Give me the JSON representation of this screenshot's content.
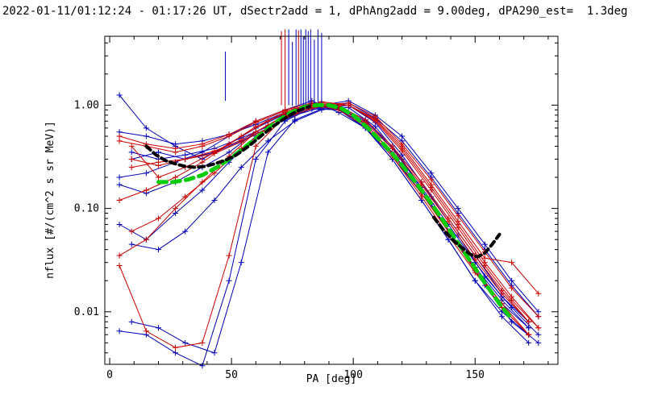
{
  "header": {
    "title": "2022-01-11/01:12:24 - 01:17:26 UT, dSectr2add = 1, dPhAng2add = 9.00deg, dPA290_est=  1.3deg"
  },
  "chart_data": {
    "type": "line",
    "title": "2022-01-11/01:12:24 - 01:17:26 UT, dSectr2add = 1, dPhAng2add = 9.00deg, dPA290_est=  1.3deg",
    "xlabel": "PA [deg]",
    "ylabel": "nflux [#/(cm^2 s sr MeV)]",
    "x_range": [
      -2,
      184
    ],
    "y_range_log": [
      0.0031,
      4.64
    ],
    "x_major_ticks": [
      0,
      50,
      100,
      150
    ],
    "x_major_labels": [
      "0",
      "50",
      "100",
      "150"
    ],
    "x_minor_step": 10,
    "y_major_ticks": [
      0.01,
      0.1,
      1.0
    ],
    "y_major_labels": [
      "0.01",
      "0.10",
      "1.00"
    ],
    "grid": false,
    "legend": "none",
    "colors": {
      "red": "#cc0000",
      "blue": "#0000bb",
      "green": "#00cc00",
      "black": "#000000",
      "axis": "#000000",
      "bg": "#ffffff"
    },
    "series": [
      {
        "name": "blue-1",
        "color": "blue",
        "x": [
          4,
          15,
          27,
          38,
          49,
          60,
          72,
          83,
          94,
          105,
          116,
          128,
          139,
          150,
          161,
          172
        ],
        "y": [
          0.55,
          0.5,
          0.42,
          0.45,
          0.52,
          0.65,
          0.85,
          1.0,
          0.95,
          0.7,
          0.4,
          0.18,
          0.08,
          0.035,
          0.015,
          0.008
        ]
      },
      {
        "name": "blue-2",
        "color": "blue",
        "x": [
          9,
          20,
          31,
          43,
          54,
          65,
          76,
          87,
          98,
          109,
          120,
          132,
          143,
          154,
          165,
          176
        ],
        "y": [
          0.35,
          0.3,
          0.33,
          0.38,
          0.48,
          0.62,
          0.8,
          0.95,
          1.05,
          0.75,
          0.45,
          0.2,
          0.09,
          0.04,
          0.018,
          0.009
        ]
      },
      {
        "name": "blue-3",
        "color": "blue",
        "x": [
          4,
          15,
          27,
          38,
          49,
          60,
          72,
          83,
          94,
          105,
          116,
          128,
          139,
          150,
          161,
          172
        ],
        "y": [
          0.17,
          0.14,
          0.18,
          0.25,
          0.35,
          0.55,
          0.78,
          0.92,
          0.9,
          0.65,
          0.35,
          0.15,
          0.06,
          0.025,
          0.012,
          0.007
        ]
      },
      {
        "name": "blue-4",
        "color": "blue",
        "x": [
          4,
          15,
          27,
          38,
          49,
          60,
          72,
          83,
          94,
          105,
          116,
          128,
          139,
          150,
          161,
          172
        ],
        "y": [
          0.07,
          0.05,
          0.09,
          0.15,
          0.28,
          0.5,
          0.75,
          0.98,
          0.92,
          0.6,
          0.3,
          0.12,
          0.05,
          0.02,
          0.01,
          0.006
        ]
      },
      {
        "name": "blue-5",
        "color": "blue",
        "x": [
          9,
          20,
          31,
          43,
          54,
          65,
          76,
          87,
          98,
          109,
          120,
          132,
          143,
          154,
          165,
          176
        ],
        "y": [
          0.045,
          0.04,
          0.06,
          0.12,
          0.25,
          0.45,
          0.7,
          0.9,
          1.0,
          0.68,
          0.33,
          0.13,
          0.055,
          0.022,
          0.011,
          0.006
        ]
      },
      {
        "name": "blue-6",
        "color": "blue",
        "x": [
          4,
          15,
          27,
          38,
          49,
          60,
          72,
          83,
          94,
          105,
          116,
          128,
          139,
          150,
          161,
          172
        ],
        "y": [
          1.25,
          0.6,
          0.4,
          0.3,
          0.42,
          0.6,
          0.82,
          1.05,
          0.98,
          0.72,
          0.38,
          0.16,
          0.07,
          0.03,
          0.014,
          0.008
        ]
      },
      {
        "name": "blue-7",
        "color": "blue",
        "x": [
          9,
          20,
          31,
          43,
          54,
          65,
          76,
          87,
          98,
          109,
          120,
          132,
          143,
          154,
          165,
          176
        ],
        "y": [
          0.3,
          0.35,
          0.3,
          0.35,
          0.45,
          0.6,
          0.8,
          1.0,
          1.1,
          0.8,
          0.5,
          0.22,
          0.1,
          0.045,
          0.02,
          0.01
        ]
      },
      {
        "name": "blue-8",
        "color": "blue",
        "x": [
          4,
          15,
          27,
          38,
          49,
          60,
          72,
          83,
          94,
          105,
          116,
          128,
          139,
          150,
          161,
          172
        ],
        "y": [
          0.2,
          0.22,
          0.28,
          0.35,
          0.5,
          0.7,
          0.9,
          1.1,
          0.85,
          0.6,
          0.32,
          0.14,
          0.06,
          0.027,
          0.013,
          0.007
        ]
      },
      {
        "name": "blue-9",
        "color": "blue",
        "x": [
          4,
          15,
          27,
          38,
          49,
          60,
          72,
          83,
          94,
          105,
          116,
          128,
          139,
          150,
          161,
          172
        ],
        "y": [
          0.0065,
          0.006,
          0.004,
          0.003,
          0.02,
          0.3,
          0.7,
          0.95,
          0.9,
          0.6,
          0.3,
          0.12,
          0.05,
          0.02,
          0.009,
          0.005
        ]
      },
      {
        "name": "blue-10",
        "color": "blue",
        "x": [
          9,
          20,
          31,
          43,
          54,
          65,
          76,
          87,
          98,
          109,
          120,
          132,
          143,
          154,
          165,
          176
        ],
        "y": [
          0.008,
          0.007,
          0.005,
          0.004,
          0.03,
          0.35,
          0.72,
          0.92,
          0.95,
          0.62,
          0.3,
          0.11,
          0.045,
          0.018,
          0.008,
          0.005
        ]
      },
      {
        "name": "red-1",
        "color": "red",
        "x": [
          4,
          15,
          27,
          38,
          49,
          60,
          72,
          83,
          94,
          105,
          116,
          128,
          139,
          150,
          161,
          172
        ],
        "y": [
          0.45,
          0.4,
          0.35,
          0.4,
          0.5,
          0.68,
          0.88,
          1.02,
          0.95,
          0.68,
          0.38,
          0.17,
          0.075,
          0.032,
          0.015,
          0.008
        ]
      },
      {
        "name": "red-2",
        "color": "red",
        "x": [
          9,
          20,
          31,
          43,
          54,
          65,
          76,
          87,
          98,
          109,
          120,
          132,
          143,
          154,
          165,
          176
        ],
        "y": [
          0.25,
          0.28,
          0.3,
          0.36,
          0.46,
          0.64,
          0.85,
          1.0,
          1.05,
          0.78,
          0.42,
          0.19,
          0.085,
          0.038,
          0.017,
          0.009
        ]
      },
      {
        "name": "red-3",
        "color": "red",
        "x": [
          4,
          15,
          27,
          38,
          49,
          60,
          72,
          83,
          94,
          105,
          116,
          128,
          139,
          150,
          161,
          172
        ],
        "y": [
          0.035,
          0.05,
          0.1,
          0.18,
          0.32,
          0.55,
          0.8,
          1.0,
          0.95,
          0.66,
          0.34,
          0.14,
          0.06,
          0.026,
          0.012,
          0.006
        ]
      },
      {
        "name": "red-4",
        "color": "red",
        "x": [
          9,
          20,
          31,
          43,
          54,
          65,
          76,
          87,
          98,
          109,
          120,
          132,
          143,
          154,
          165,
          176
        ],
        "y": [
          0.06,
          0.08,
          0.13,
          0.22,
          0.38,
          0.6,
          0.85,
          1.05,
          1.0,
          0.7,
          0.36,
          0.15,
          0.065,
          0.028,
          0.013,
          0.007
        ]
      },
      {
        "name": "red-5",
        "color": "red",
        "x": [
          4,
          15,
          27,
          38,
          49,
          60,
          72,
          83,
          94,
          105,
          116,
          128,
          139,
          150,
          161,
          172
        ],
        "y": [
          0.5,
          0.42,
          0.38,
          0.42,
          0.52,
          0.7,
          0.9,
          1.05,
          0.98,
          0.72,
          0.4,
          0.18,
          0.08,
          0.035,
          0.016,
          0.008
        ]
      },
      {
        "name": "red-6",
        "color": "red",
        "x": [
          9,
          20,
          31,
          43,
          54,
          65,
          76,
          87,
          98,
          109,
          120,
          132,
          143,
          154,
          165,
          176
        ],
        "y": [
          0.3,
          0.26,
          0.3,
          0.34,
          0.44,
          0.6,
          0.82,
          0.98,
          1.0,
          0.74,
          0.4,
          0.17,
          0.075,
          0.033,
          0.03,
          0.015
        ]
      },
      {
        "name": "red-7",
        "color": "red",
        "x": [
          4,
          15,
          27,
          38,
          49,
          60,
          72,
          83,
          94,
          105,
          116,
          128,
          139,
          150,
          161,
          172
        ],
        "y": [
          0.12,
          0.15,
          0.2,
          0.28,
          0.42,
          0.62,
          0.85,
          1.0,
          0.9,
          0.62,
          0.32,
          0.13,
          0.055,
          0.024,
          0.011,
          0.006
        ]
      },
      {
        "name": "red-8",
        "color": "red",
        "x": [
          9,
          20,
          31,
          43,
          54,
          65,
          76,
          87,
          98,
          109,
          120,
          132,
          143,
          154,
          165,
          176
        ],
        "y": [
          0.4,
          0.2,
          0.25,
          0.35,
          0.5,
          0.7,
          0.92,
          1.08,
          1.0,
          0.72,
          0.38,
          0.16,
          0.07,
          0.03,
          0.014,
          0.007
        ]
      },
      {
        "name": "red-9",
        "color": "red",
        "x": [
          4,
          15,
          27,
          38,
          49,
          60,
          72,
          83,
          94,
          105,
          116,
          128,
          139,
          150,
          161,
          172
        ],
        "y": [
          0.028,
          0.0065,
          0.0045,
          0.005,
          0.035,
          0.4,
          0.78,
          1.02,
          0.94,
          0.66,
          0.34,
          0.14,
          0.06,
          0.025,
          0.011,
          0.006
        ]
      }
    ],
    "overlays": [
      {
        "name": "fit-curve-green",
        "color": "green",
        "width": 5,
        "dash": "10,7",
        "x": [
          20,
          26,
          32,
          38,
          44,
          50,
          56,
          62,
          68,
          74,
          80,
          85,
          90,
          95,
          100,
          106,
          112,
          118,
          124,
          130,
          136,
          142,
          148,
          154,
          160,
          165
        ],
        "y": [
          0.18,
          0.18,
          0.19,
          0.21,
          0.25,
          0.31,
          0.4,
          0.52,
          0.68,
          0.84,
          0.96,
          1.0,
          1.0,
          0.93,
          0.8,
          0.6,
          0.43,
          0.3,
          0.2,
          0.13,
          0.082,
          0.05,
          0.031,
          0.019,
          0.012,
          0.0085
        ]
      },
      {
        "name": "fit-curve-black-left",
        "color": "black",
        "width": 4,
        "dash": "7,5",
        "x": [
          15,
          19,
          23,
          27,
          31,
          35,
          39,
          43,
          47,
          52,
          57,
          62,
          67,
          72,
          77,
          82
        ],
        "y": [
          0.4,
          0.33,
          0.29,
          0.27,
          0.255,
          0.25,
          0.255,
          0.27,
          0.29,
          0.33,
          0.4,
          0.5,
          0.62,
          0.75,
          0.88,
          0.97
        ]
      },
      {
        "name": "fit-curve-black-right",
        "color": "black",
        "width": 4,
        "dash": "7,5",
        "x": [
          133,
          137,
          141,
          145,
          148,
          151,
          154,
          157,
          160
        ],
        "y": [
          0.082,
          0.062,
          0.049,
          0.041,
          0.036,
          0.034,
          0.037,
          0.045,
          0.056
        ]
      }
    ],
    "spikes": [
      {
        "pa": 47.5,
        "color": "blue",
        "v_top": 3.3,
        "v_bot": 1.1
      },
      {
        "pa": 70.5,
        "color": "red",
        "v_top": 5.2,
        "v_bot": 1.0
      },
      {
        "pa": 72,
        "color": "red",
        "v_top": 5.4,
        "v_bot": 0.95
      },
      {
        "pa": 73.5,
        "color": "blue",
        "v_top": 5.4,
        "v_bot": 1.0
      },
      {
        "pa": 75,
        "color": "blue",
        "v_top": 4.1,
        "v_bot": 0.98
      },
      {
        "pa": 76.5,
        "color": "blue",
        "v_top": 5.4,
        "v_bot": 1.0
      },
      {
        "pa": 77.5,
        "color": "red",
        "v_top": 5.3,
        "v_bot": 1.0
      },
      {
        "pa": 78.5,
        "color": "blue",
        "v_top": 5.4,
        "v_bot": 1.02
      },
      {
        "pa": 79.5,
        "color": "blue",
        "v_top": 4.6,
        "v_bot": 1.0
      },
      {
        "pa": 80.5,
        "color": "blue",
        "v_top": 5.4,
        "v_bot": 1.0
      },
      {
        "pa": 81.5,
        "color": "blue",
        "v_top": 5.2,
        "v_bot": 1.05
      },
      {
        "pa": 82.5,
        "color": "blue",
        "v_top": 5.4,
        "v_bot": 1.0
      },
      {
        "pa": 84,
        "color": "blue",
        "v_top": 4.3,
        "v_bot": 1.0
      },
      {
        "pa": 85.5,
        "color": "blue",
        "v_top": 5.4,
        "v_bot": 1.0
      },
      {
        "pa": 87,
        "color": "blue",
        "v_top": 5.0,
        "v_bot": 1.0
      }
    ]
  }
}
